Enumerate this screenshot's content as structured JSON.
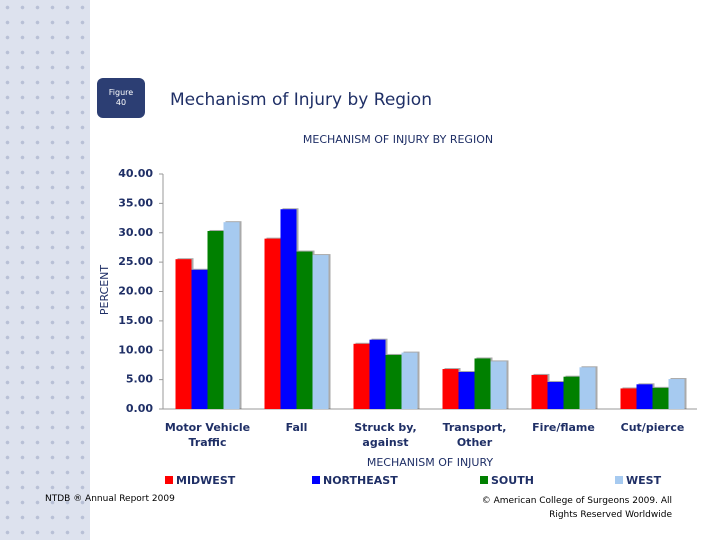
{
  "slide": {
    "badge": "Figure 40",
    "title": "Mechanism of Injury by Region"
  },
  "chart_data": {
    "type": "bar",
    "title": "MECHANISM OF INJURY BY REGION",
    "x_label": "MECHANISM OF INJURY",
    "y_label": "PERCENT",
    "categories": [
      "Motor Vehicle Traffic",
      "Fall",
      "Struck by, against",
      "Transport, Other",
      "Fire/flame",
      "Cut/pierce"
    ],
    "series": [
      {
        "name": "MIDWEST",
        "color": "#ff0000",
        "values": [
          25.5,
          29.0,
          11.1,
          6.8,
          5.8,
          3.5
        ]
      },
      {
        "name": "NORTHEAST",
        "color": "#0000ff",
        "values": [
          23.7,
          34.0,
          11.8,
          6.3,
          4.6,
          4.2
        ]
      },
      {
        "name": "SOUTH",
        "color": "#008000",
        "values": [
          30.3,
          26.8,
          9.2,
          8.6,
          5.5,
          3.6
        ]
      },
      {
        "name": "WEST",
        "color": "#a6caf0",
        "values": [
          31.8,
          26.2,
          9.6,
          8.1,
          7.1,
          5.1
        ]
      }
    ],
    "ylim": [
      0,
      40
    ],
    "yticks": [
      {
        "value": 0,
        "label": "0.00"
      },
      {
        "value": 5,
        "label": "5.00"
      },
      {
        "value": 10,
        "label": "10.00"
      },
      {
        "value": 15,
        "label": "15.00"
      },
      {
        "value": 20,
        "label": "20.00"
      },
      {
        "value": 25,
        "label": "25.00"
      },
      {
        "value": 30,
        "label": "30.00"
      },
      {
        "value": 35,
        "label": "35.00"
      },
      {
        "value": 40,
        "label": "40.00"
      }
    ],
    "legend": "bottom"
  },
  "footer": {
    "left": "NTDB ® Annual Report 2009",
    "right": "© American College of Surgeons 2009.  All Rights Reserved Worldwide"
  }
}
